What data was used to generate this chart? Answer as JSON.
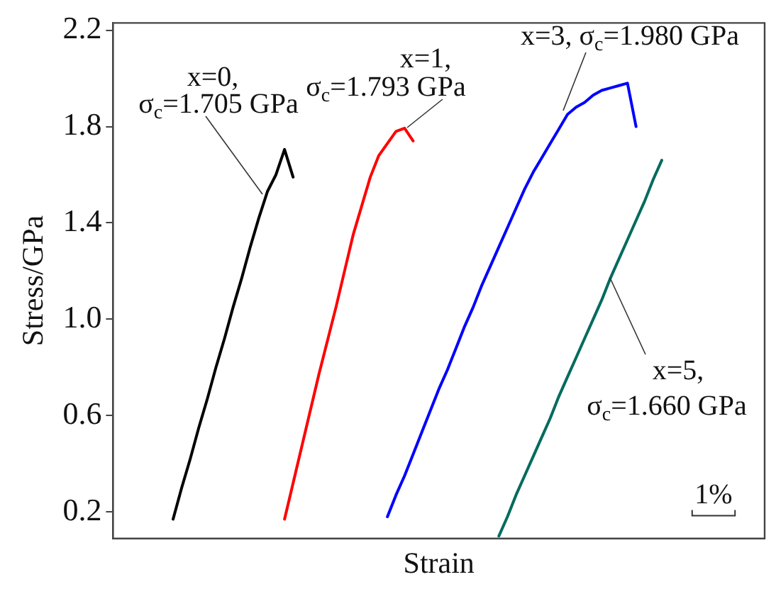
{
  "chart_data": {
    "type": "line",
    "xlabel": "Strain",
    "ylabel": "Stress/GPa",
    "categories": [
      null,
      null,
      null,
      null,
      null,
      null,
      null,
      null,
      null,
      null,
      null,
      null,
      null,
      null,
      null,
      null,
      null,
      null,
      null,
      null,
      null,
      null,
      null,
      null,
      null,
      null,
      null,
      null,
      null,
      null,
      null,
      null,
      null,
      null,
      null,
      null,
      null,
      null,
      null,
      null,
      null,
      null,
      null,
      null,
      null,
      null,
      null,
      null,
      null,
      null,
      null,
      null,
      null,
      null,
      null,
      null,
      null,
      null,
      null,
      null,
      null,
      null,
      null,
      null,
      null,
      null,
      null,
      null,
      null,
      null,
      null,
      null,
      null,
      null,
      null,
      null,
      null
    ],
    "ylim": [
      0.09,
      2.23
    ],
    "yticks": [
      0.2,
      0.6,
      {
        "value": 1,
        "label": "1.0"
      },
      1.4,
      1.8,
      2.2
    ],
    "tick_labels": "y",
    "grid": false,
    "legend": false,
    "marker": "none",
    "line_style": "solid",
    "series": [
      {
        "color": "#000000",
        "values": [
          null,
          null,
          null,
          null,
          null,
          null,
          null,
          0.17,
          0.3,
          0.42,
          0.55,
          0.67,
          0.8,
          0.92,
          1.05,
          1.17,
          1.3,
          1.42,
          1.53,
          1.6,
          1.705,
          1.59,
          null,
          null,
          null,
          null,
          null,
          null,
          null,
          null,
          null,
          null,
          null,
          null,
          null,
          null,
          null,
          null,
          null,
          null,
          null,
          null,
          null,
          null,
          null,
          null,
          null,
          null,
          null,
          null,
          null,
          null,
          null,
          null,
          null,
          null,
          null,
          null,
          null,
          null,
          null,
          null,
          null,
          null,
          null,
          null,
          null,
          null,
          null,
          null,
          null,
          null,
          null,
          null,
          null,
          null,
          null
        ]
      },
      {
        "color": "#ff0000",
        "values": [
          null,
          null,
          null,
          null,
          null,
          null,
          null,
          null,
          null,
          null,
          null,
          null,
          null,
          null,
          null,
          null,
          null,
          null,
          null,
          null,
          0.17,
          0.32,
          0.47,
          0.62,
          0.77,
          0.91,
          1.05,
          1.2,
          1.35,
          1.47,
          1.59,
          1.68,
          1.73,
          1.78,
          1.793,
          1.74,
          null,
          null,
          null,
          null,
          null,
          null,
          null,
          null,
          null,
          null,
          null,
          null,
          null,
          null,
          null,
          null,
          null,
          null,
          null,
          null,
          null,
          null,
          null,
          null,
          null,
          null,
          null,
          null,
          null,
          null,
          null,
          null,
          null,
          null,
          null,
          null,
          null,
          null,
          null,
          null,
          null
        ]
      },
      {
        "color": "#0000ff",
        "values": [
          null,
          null,
          null,
          null,
          null,
          null,
          null,
          null,
          null,
          null,
          null,
          null,
          null,
          null,
          null,
          null,
          null,
          null,
          null,
          null,
          null,
          null,
          null,
          null,
          null,
          null,
          null,
          null,
          null,
          null,
          null,
          null,
          0.18,
          0.27,
          0.35,
          0.44,
          0.53,
          0.62,
          0.71,
          0.79,
          0.88,
          0.97,
          1.05,
          1.14,
          1.22,
          1.3,
          1.38,
          1.46,
          1.54,
          1.61,
          1.67,
          1.73,
          1.79,
          1.85,
          1.88,
          1.9,
          1.93,
          1.95,
          1.96,
          1.97,
          1.98,
          1.8,
          null,
          null,
          null,
          null,
          null,
          null,
          null,
          null,
          null,
          null,
          null,
          null,
          null,
          null,
          null
        ]
      },
      {
        "color": "#006b5e",
        "values": [
          null,
          null,
          null,
          null,
          null,
          null,
          null,
          null,
          null,
          null,
          null,
          null,
          null,
          null,
          null,
          null,
          null,
          null,
          null,
          null,
          null,
          null,
          null,
          null,
          null,
          null,
          null,
          null,
          null,
          null,
          null,
          null,
          null,
          null,
          null,
          null,
          null,
          null,
          null,
          null,
          null,
          null,
          null,
          null,
          null,
          0.1,
          0.18,
          0.27,
          0.35,
          0.43,
          0.51,
          0.59,
          0.68,
          0.76,
          0.84,
          0.92,
          1.0,
          1.08,
          1.17,
          1.25,
          1.33,
          1.41,
          1.49,
          1.58,
          1.66,
          null,
          null,
          null,
          null,
          null,
          null,
          null,
          null,
          null,
          null,
          null,
          null
        ]
      }
    ],
    "annotations": [
      "x=0, σ$_{c}$=1.705 GPa",
      "x=1, σ$_{c}$=1.793 GPa",
      "x=3, σ$_{c}$=1.980 GPa",
      "x=5, σ$_{c}$=1.660 GPa",
      "1%"
    ]
  }
}
